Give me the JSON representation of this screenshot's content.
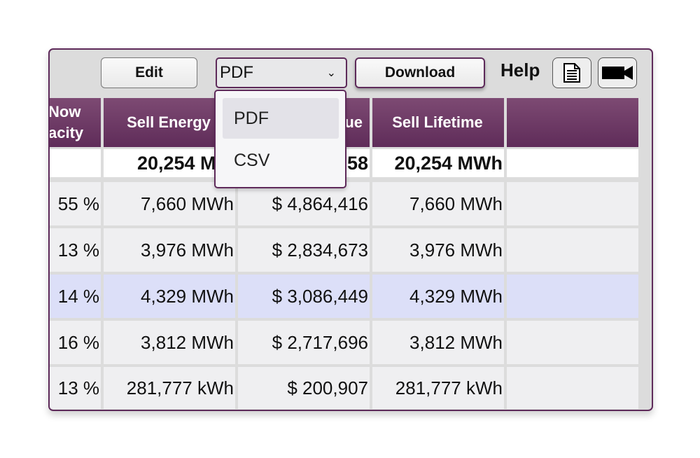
{
  "toolbar": {
    "edit_label": "Edit",
    "format_value": "PDF",
    "download_label": "Download",
    "help_label": "Help",
    "icons": [
      "document-icon",
      "video-camera-icon"
    ]
  },
  "dropdown": {
    "options": [
      "PDF",
      "CSV"
    ],
    "selected": "PDF"
  },
  "table": {
    "headers": [
      "Now",
      "acity",
      "Sell Energy",
      "ue",
      "Sell Lifetime",
      ""
    ],
    "totals": [
      "",
      "20,254 MW",
      "58",
      "20,254 MWh",
      ""
    ],
    "rows": [
      [
        "55 %",
        "7,660 MWh",
        "$ 4,864,416",
        "7,660 MWh",
        ""
      ],
      [
        "13 %",
        "3,976 MWh",
        "$ 2,834,673",
        "3,976 MWh",
        ""
      ],
      [
        "14 %",
        "4,329 MWh",
        "$ 3,086,449",
        "4,329 MWh",
        ""
      ],
      [
        "16 %",
        "3,812 MWh",
        "$ 2,717,696",
        "3,812 MWh",
        ""
      ],
      [
        "13 %",
        "281,777 kWh",
        "$ 200,907",
        "281,777 kWh",
        ""
      ]
    ],
    "highlighted_row": 2
  },
  "colors": {
    "accent": "#5e2a5a",
    "highlight": "#dcdff8"
  }
}
